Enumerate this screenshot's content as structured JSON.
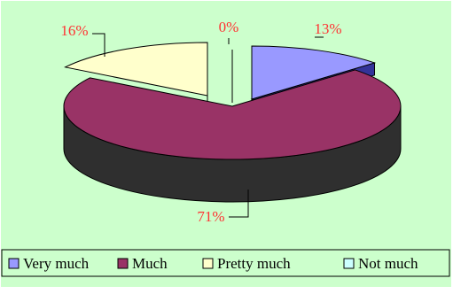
{
  "chart_data": {
    "type": "pie",
    "style": "3d-exploded",
    "categories": [
      "Very much",
      "Much",
      "Pretty much",
      "Not much"
    ],
    "values": [
      13,
      71,
      16,
      0
    ],
    "value_labels": [
      "13%",
      "71%",
      "16%",
      "0%"
    ],
    "legend_position": "bottom",
    "colors": {
      "Very much": "#9999ff",
      "Much": "#993366",
      "Pretty much": "#ffffcc",
      "Not much": "#ccffff"
    },
    "side_colors": {
      "Very much": "#333399",
      "Much": "#2f2f2f",
      "Pretty much": "#7f7f7f",
      "Not much": "#99cccc"
    },
    "label_color": "#ff3333",
    "background": "#ccffcc"
  }
}
